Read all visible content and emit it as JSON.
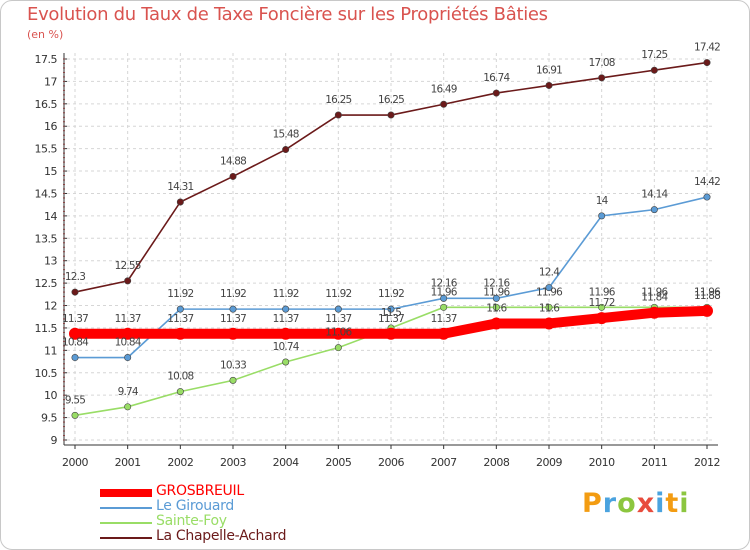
{
  "chart_data": {
    "type": "line",
    "title": "Evolution du Taux de Taxe Foncière sur les Propriétés Bâties",
    "ylabel": "(en %)",
    "xlabel": "",
    "categories": [
      "2000",
      "2001",
      "2002",
      "2003",
      "2004",
      "2005",
      "2006",
      "2007",
      "2008",
      "2009",
      "2010",
      "2011",
      "2012"
    ],
    "ylim": [
      9,
      17.5
    ],
    "yticks": [
      "9",
      "9.5",
      "10",
      "10.5",
      "11",
      "11.5",
      "12",
      "12.5",
      "13",
      "13.5",
      "14",
      "14.5",
      "15",
      "15.5",
      "16",
      "16.5",
      "17",
      "17.5"
    ],
    "series": [
      {
        "name": "GROSBREUIL",
        "color": "#ff0000",
        "values": [
          11.37,
          11.37,
          11.37,
          11.37,
          11.37,
          11.37,
          11.37,
          11.37,
          11.6,
          11.6,
          11.72,
          11.84,
          11.88
        ],
        "labels": [
          "11.37",
          "11.37",
          "11.37",
          "11.37",
          "11.37",
          "11.37",
          "11.37",
          "11.37",
          "11.6",
          "11.6",
          "11.72",
          "11.84",
          "11.88"
        ]
      },
      {
        "name": "Le Girouard",
        "color": "#5b9bd5",
        "values": [
          10.84,
          10.84,
          11.92,
          11.92,
          11.92,
          11.92,
          11.92,
          12.16,
          12.16,
          12.4,
          14,
          14.14,
          14.42
        ],
        "labels": [
          "10.84",
          "10.84",
          "11.92",
          "11.92",
          "11.92",
          "11.92",
          "11.92",
          "12.16",
          "12.16",
          "12.4",
          "14",
          "14.14",
          "14.42"
        ]
      },
      {
        "name": "Sainte-Foy",
        "color": "#99dd66",
        "values": [
          9.55,
          9.74,
          10.08,
          10.33,
          10.74,
          11.06,
          11.5,
          11.96,
          11.96,
          11.96,
          11.96,
          11.96,
          11.96
        ],
        "labels": [
          "9.55",
          "9.74",
          "10.08",
          "10.33",
          "10.74",
          "11.06",
          "11.5",
          "11.96",
          "11.96",
          "11.96",
          "11.96",
          "11.96",
          "11.96"
        ]
      },
      {
        "name": "La Chapelle-Achard",
        "color": "#6b1a1a",
        "values": [
          12.3,
          12.55,
          14.31,
          14.88,
          15.48,
          16.25,
          16.25,
          16.49,
          16.74,
          16.91,
          17.08,
          17.25,
          17.42
        ],
        "labels": [
          "12.3",
          "12.55",
          "14.31",
          "14.88",
          "15.48",
          "16.25",
          "16.25",
          "16.49",
          "16.74",
          "16.91",
          "17.08",
          "17.25",
          "17.42"
        ]
      }
    ]
  },
  "logo": {
    "text": "Proxiti"
  }
}
